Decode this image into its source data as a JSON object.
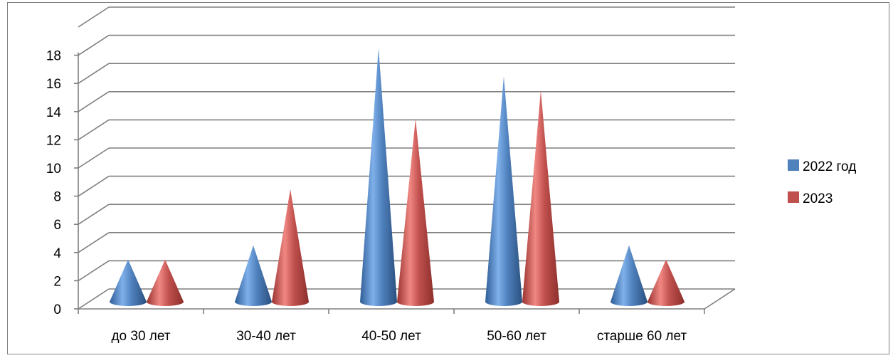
{
  "chart_data": {
    "type": "bar",
    "shape": "cone-3d",
    "categories": [
      "до 30 лет",
      "30-40 лет",
      "40-50 лет",
      "50-60 лет",
      "старше 60 лет"
    ],
    "series": [
      {
        "name": "2022 год",
        "values": [
          3,
          4,
          18,
          16,
          4
        ],
        "color": "#4f81bd"
      },
      {
        "name": "2023",
        "values": [
          3,
          8,
          13,
          15,
          3
        ],
        "color": "#c0504d"
      }
    ],
    "yticks": [
      "0",
      "2",
      "4",
      "6",
      "8",
      "10",
      "12",
      "14",
      "16",
      "18"
    ],
    "ylim": [
      0,
      20
    ],
    "grid": true,
    "legend_position": "right"
  }
}
